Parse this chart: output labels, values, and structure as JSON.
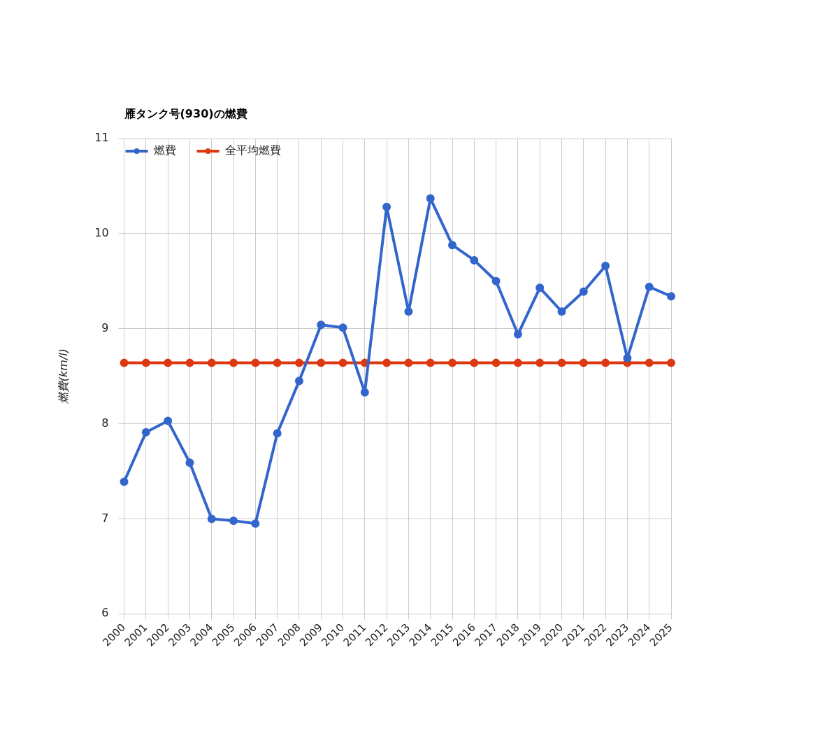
{
  "chart_data": {
    "type": "line",
    "title": "雁タンク号(930)の燃費",
    "ylabel": "燃費(km/l)",
    "categories": [
      "2000",
      "2001",
      "2002",
      "2003",
      "2004",
      "2005",
      "2006",
      "2007",
      "2008",
      "2009",
      "2010",
      "2011",
      "2012",
      "2013",
      "2014",
      "2015",
      "2016",
      "2017",
      "2018",
      "2019",
      "2020",
      "2021",
      "2022",
      "2023",
      "2024",
      "2025"
    ],
    "series": [
      {
        "name": "燃費",
        "color": "#3366cc",
        "values": [
          7.39,
          7.91,
          8.03,
          7.59,
          7.0,
          6.98,
          6.95,
          7.9,
          8.45,
          9.04,
          9.01,
          8.33,
          10.28,
          9.18,
          10.37,
          9.88,
          9.72,
          9.5,
          8.94,
          9.43,
          9.18,
          9.39,
          9.66,
          8.69,
          9.44,
          9.34
        ]
      },
      {
        "name": "全平均燃費",
        "color": "#dc3912",
        "values": [
          8.64,
          8.64,
          8.64,
          8.64,
          8.64,
          8.64,
          8.64,
          8.64,
          8.64,
          8.64,
          8.64,
          8.64,
          8.64,
          8.64,
          8.64,
          8.64,
          8.64,
          8.64,
          8.64,
          8.64,
          8.64,
          8.64,
          8.64,
          8.64,
          8.64,
          8.64
        ]
      }
    ],
    "ylim": [
      6,
      11
    ],
    "yticks": [
      6,
      7,
      8,
      9,
      10,
      11
    ],
    "grid": true,
    "legend": "top left",
    "marker": "circle",
    "line_style": "solid"
  }
}
